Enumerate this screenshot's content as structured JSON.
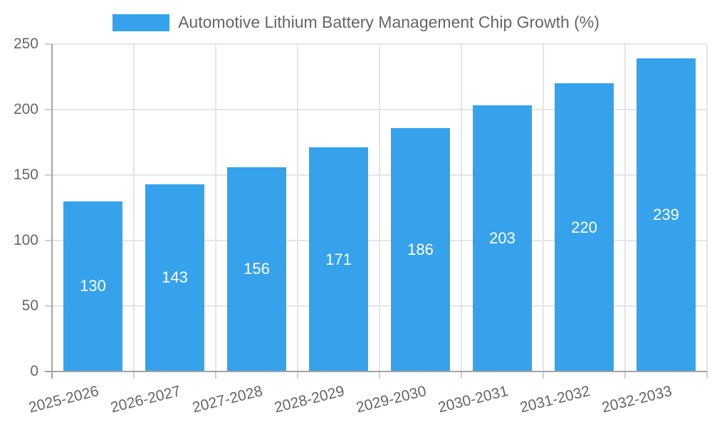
{
  "legend": {
    "label": "Automotive Lithium Battery Management Chip Growth (%)"
  },
  "chart_data": {
    "type": "bar",
    "title": "",
    "xlabel": "",
    "ylabel": "",
    "categories": [
      "2025-2026",
      "2026-2027",
      "2027-2028",
      "2028-2029",
      "2029-2030",
      "2030-2031",
      "2031-2032",
      "2032-2033"
    ],
    "values": [
      130,
      143,
      156,
      171,
      186,
      203,
      220,
      239
    ],
    "series_name": "Automotive Lithium Battery Management Chip Growth (%)",
    "ylim": [
      0,
      250
    ],
    "yticks": [
      0,
      50,
      100,
      150,
      200,
      250
    ],
    "grid": true,
    "legend_position": "top",
    "x_label_rotation_deg": -14,
    "bar_color": "#36A2EB",
    "value_label_color": "#ffffff",
    "colors": {
      "grid": "#e5e5e5",
      "tick": "#cfcfcf",
      "axis": "#a3a3a3",
      "text": "#666666"
    }
  }
}
